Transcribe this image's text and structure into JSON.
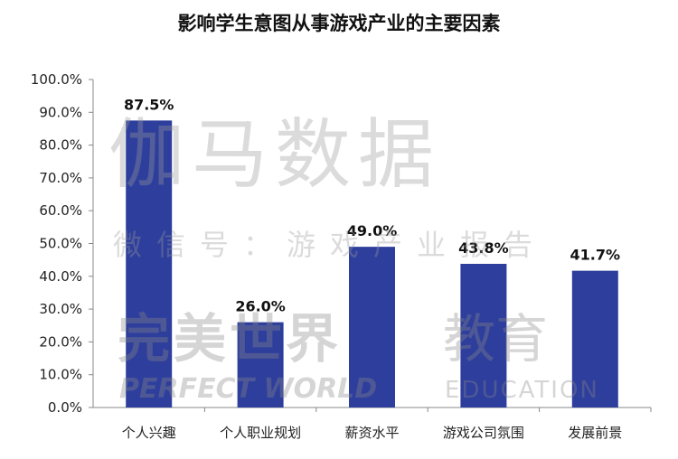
{
  "chart_data": {
    "type": "bar",
    "title": "影响学生意图从事游戏产业的主要因素",
    "categories": [
      "个人兴趣",
      "个人职业规划",
      "薪资水平",
      "游戏公司氛围",
      "发展前景"
    ],
    "values": [
      87.5,
      26.0,
      49.0,
      43.8,
      41.7
    ],
    "data_labels": [
      "87.5%",
      "26.0%",
      "49.0%",
      "43.8%",
      "41.7%"
    ],
    "ylim": [
      0,
      100
    ],
    "yticks": [
      "0.0%",
      "10.0%",
      "20.0%",
      "30.0%",
      "40.0%",
      "50.0%",
      "60.0%",
      "70.0%",
      "80.0%",
      "90.0%",
      "100.0%"
    ],
    "xlabel": "",
    "ylabel": "",
    "grid": false,
    "legend": "none",
    "bar_color": "#2e3e9c"
  },
  "watermark": {
    "line1": "伽马数据",
    "line2": "微信号：游戏产业报告",
    "brand_cn": "完美世界",
    "brand_en": "PERFECT WORLD",
    "edu_cn": "教育",
    "edu_en": "EDUCATION"
  }
}
